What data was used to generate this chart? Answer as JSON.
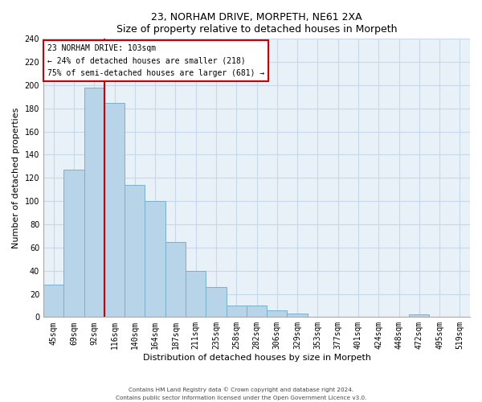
{
  "title": "23, NORHAM DRIVE, MORPETH, NE61 2XA",
  "subtitle": "Size of property relative to detached houses in Morpeth",
  "xlabel": "Distribution of detached houses by size in Morpeth",
  "ylabel": "Number of detached properties",
  "bar_labels": [
    "45sqm",
    "69sqm",
    "92sqm",
    "116sqm",
    "140sqm",
    "164sqm",
    "187sqm",
    "211sqm",
    "235sqm",
    "258sqm",
    "282sqm",
    "306sqm",
    "329sqm",
    "353sqm",
    "377sqm",
    "401sqm",
    "424sqm",
    "448sqm",
    "472sqm",
    "495sqm",
    "519sqm"
  ],
  "bar_values": [
    28,
    127,
    198,
    185,
    114,
    100,
    65,
    40,
    26,
    10,
    10,
    6,
    3,
    0,
    0,
    0,
    0,
    0,
    2,
    0,
    0
  ],
  "bar_color": "#b8d4e8",
  "bar_edge_color": "#7ab0cc",
  "vline_color": "#cc0000",
  "annotation_title": "23 NORHAM DRIVE: 103sqm",
  "annotation_line1": "← 24% of detached houses are smaller (218)",
  "annotation_line2": "75% of semi-detached houses are larger (681) →",
  "annotation_box_color": "#ffffff",
  "annotation_box_edge": "#cc0000",
  "ylim": [
    0,
    240
  ],
  "footer1": "Contains HM Land Registry data © Crown copyright and database right 2024.",
  "footer2": "Contains public sector information licensed under the Open Government Licence v3.0.",
  "background_color": "#ffffff",
  "plot_bg_color": "#e8f0f8",
  "grid_color": "#c8d8e8"
}
